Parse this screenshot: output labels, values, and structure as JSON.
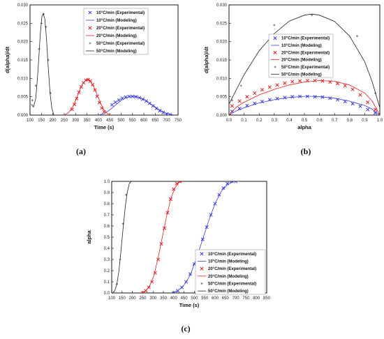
{
  "chart_data": [
    {
      "id": "a",
      "caption": "(a)",
      "type": "line",
      "xlabel": "Time (s)",
      "ylabel": "d(alpha)/dt",
      "xlim": [
        100,
        750
      ],
      "ylim": [
        0,
        0.03
      ],
      "x_ticks": [
        "100",
        "150",
        "200",
        "250",
        "300",
        "350",
        "400",
        "450",
        "500",
        "550",
        "600",
        "650",
        "700",
        "750"
      ],
      "y_ticks": [
        "0.000",
        "0.005",
        "0.010",
        "0.015",
        "0.020",
        "0.025",
        "0.030"
      ],
      "legend_position": "top-right",
      "legend": [
        {
          "series": 0,
          "label": "10°C/min (Experimental)"
        },
        {
          "series": 1,
          "label": "10°C/min (Modeling)"
        },
        {
          "series": 2,
          "label": "20°C/min (Experimental)"
        },
        {
          "series": 3,
          "label": "20°C/min (Modeling)"
        },
        {
          "series": 4,
          "label": "50°C/min (Experimental)"
        },
        {
          "series": 5,
          "label": "50°C/min (Modeling)"
        }
      ],
      "series": [
        {
          "name": "10°C/min (Experimental)",
          "color": "#3b3bd6",
          "style": "marker",
          "x": [
            460,
            475,
            490,
            505,
            520,
            535,
            550,
            565,
            580,
            595,
            610,
            625,
            640,
            655,
            670,
            685,
            700,
            715
          ],
          "y": [
            0.0028,
            0.0035,
            0.0041,
            0.0046,
            0.0049,
            0.0051,
            0.0051,
            0.005,
            0.0047,
            0.0043,
            0.0038,
            0.0032,
            0.0025,
            0.0018,
            0.0012,
            0.0007,
            0.0003,
            0.0001
          ]
        },
        {
          "name": "10°C/min (Modeling)",
          "color": "#3b3bd6",
          "style": "line",
          "x": [
            400,
            425,
            450,
            475,
            500,
            525,
            550,
            575,
            600,
            625,
            650,
            675,
            700,
            725,
            740
          ],
          "y": [
            0.0,
            0.0004,
            0.0014,
            0.0027,
            0.004,
            0.0048,
            0.0051,
            0.0049,
            0.0043,
            0.0033,
            0.0022,
            0.0012,
            0.0005,
            0.0001,
            0.0
          ]
        },
        {
          "name": "20°C/min (Experimental)",
          "color": "#e02020",
          "style": "marker",
          "x": [
            285,
            295,
            305,
            315,
            325,
            335,
            345,
            355,
            365,
            375,
            385,
            395,
            405,
            415,
            425
          ],
          "y": [
            0.0016,
            0.0029,
            0.0045,
            0.0062,
            0.0077,
            0.0088,
            0.0095,
            0.0097,
            0.0093,
            0.0083,
            0.0068,
            0.0051,
            0.0034,
            0.0019,
            0.0009
          ]
        },
        {
          "name": "20°C/min (Modeling)",
          "color": "#e02020",
          "style": "line",
          "x": [
            250,
            270,
            290,
            305,
            320,
            335,
            350,
            365,
            380,
            395,
            410,
            425,
            440,
            455
          ],
          "y": [
            0.0,
            0.0007,
            0.0025,
            0.0047,
            0.0071,
            0.0089,
            0.0096,
            0.0092,
            0.0077,
            0.0055,
            0.0032,
            0.0014,
            0.0004,
            0.0
          ]
        },
        {
          "name": "50°C/min (Experimental)",
          "color": "#555555",
          "style": "marker",
          "x": [
            110,
            125,
            140,
            150,
            160,
            170,
            180,
            190
          ],
          "y": [
            0.004,
            0.008,
            0.018,
            0.025,
            0.0275,
            0.024,
            0.015,
            0.006
          ]
        },
        {
          "name": "50°C/min (Modeling)",
          "color": "#222222",
          "style": "line",
          "x": [
            105,
            115,
            125,
            135,
            145,
            152,
            158,
            165,
            172,
            180,
            188,
            196,
            205
          ],
          "y": [
            0.003,
            0.0022,
            0.0045,
            0.012,
            0.022,
            0.0268,
            0.0276,
            0.0262,
            0.021,
            0.013,
            0.006,
            0.0018,
            0.0
          ]
        }
      ]
    },
    {
      "id": "b",
      "caption": "(b)",
      "type": "line",
      "xlabel": "alpha",
      "ylabel": "d(alpha)/dt",
      "xlim": [
        0,
        1
      ],
      "ylim": [
        0,
        0.03
      ],
      "x_ticks": [
        "0.0",
        "0.1",
        "0.2",
        "0.3",
        "0.4",
        "0.5",
        "0.6",
        "0.7",
        "0.8",
        "0.9",
        "1.0"
      ],
      "y_ticks": [
        "0.000",
        "0.005",
        "0.010",
        "0.015",
        "0.020",
        "0.025",
        "0.030"
      ],
      "legend_position": "center-right",
      "legend": [
        {
          "series": 0,
          "label": "10°C/min (Experimental)"
        },
        {
          "series": 1,
          "label": "10°C/min (Modeling)"
        },
        {
          "series": 2,
          "label": "20°C/min (Experimental)"
        },
        {
          "series": 3,
          "label": "20°C/min (Modeling)"
        },
        {
          "series": 4,
          "label": "50°C/min (Experimental)"
        },
        {
          "series": 5,
          "label": "50°C/min (Modeling)"
        }
      ],
      "series": [
        {
          "name": "10°C/min (Experimental)",
          "color": "#3b3bd6",
          "style": "marker",
          "x": [
            0.02,
            0.07,
            0.12,
            0.17,
            0.22,
            0.27,
            0.32,
            0.37,
            0.42,
            0.47,
            0.52,
            0.57,
            0.62,
            0.67,
            0.72,
            0.77,
            0.82,
            0.87,
            0.92,
            0.97
          ],
          "y": [
            0.001,
            0.0018,
            0.0026,
            0.0032,
            0.0037,
            0.0042,
            0.0045,
            0.0048,
            0.005,
            0.0051,
            0.0051,
            0.005,
            0.0049,
            0.0046,
            0.0042,
            0.0037,
            0.0031,
            0.0024,
            0.0015,
            0.0006
          ]
        },
        {
          "name": "10°C/min (Modeling)",
          "color": "#3b3bd6",
          "style": "line",
          "x": [
            0.0,
            0.05,
            0.1,
            0.2,
            0.3,
            0.4,
            0.5,
            0.55,
            0.6,
            0.7,
            0.8,
            0.9,
            0.95,
            1.0
          ],
          "y": [
            0.0,
            0.0012,
            0.002,
            0.0033,
            0.0042,
            0.0048,
            0.0051,
            0.0051,
            0.005,
            0.0046,
            0.0038,
            0.0026,
            0.0016,
            0.0
          ]
        },
        {
          "name": "20°C/min (Experimental)",
          "color": "#e02020",
          "style": "marker",
          "x": [
            0.02,
            0.07,
            0.12,
            0.17,
            0.22,
            0.27,
            0.32,
            0.37,
            0.42,
            0.47,
            0.52,
            0.57,
            0.62,
            0.67,
            0.72,
            0.77,
            0.82,
            0.87,
            0.92,
            0.97
          ],
          "y": [
            0.0025,
            0.0038,
            0.005,
            0.006,
            0.0069,
            0.0076,
            0.0082,
            0.0087,
            0.0091,
            0.0093,
            0.0094,
            0.0094,
            0.0093,
            0.009,
            0.0086,
            0.008,
            0.007,
            0.0055,
            0.0035,
            0.0015
          ]
        },
        {
          "name": "20°C/min (Modeling)",
          "color": "#e02020",
          "style": "line",
          "x": [
            0.0,
            0.05,
            0.1,
            0.2,
            0.3,
            0.4,
            0.5,
            0.6,
            0.7,
            0.8,
            0.9,
            0.95,
            1.0
          ],
          "y": [
            0.0,
            0.0022,
            0.0035,
            0.0055,
            0.007,
            0.0082,
            0.009,
            0.0094,
            0.0092,
            0.0082,
            0.006,
            0.0038,
            0.0
          ]
        },
        {
          "name": "50°C/min (Experimental)",
          "color": "#555555",
          "style": "marker",
          "x": [
            0.02,
            0.08,
            0.3,
            0.55,
            0.85,
            0.97
          ],
          "y": [
            0.004,
            0.008,
            0.0245,
            0.0272,
            0.0215,
            0.006
          ]
        },
        {
          "name": "50°C/min (Modeling)",
          "color": "#222222",
          "style": "line",
          "x": [
            0.0,
            0.05,
            0.1,
            0.2,
            0.3,
            0.4,
            0.5,
            0.55,
            0.6,
            0.7,
            0.8,
            0.9,
            0.95,
            1.0
          ],
          "y": [
            0.003,
            0.007,
            0.011,
            0.0175,
            0.0222,
            0.0256,
            0.0272,
            0.0275,
            0.0272,
            0.0255,
            0.0215,
            0.0145,
            0.009,
            0.002
          ]
        }
      ]
    },
    {
      "id": "c",
      "caption": "(c)",
      "type": "line",
      "xlabel": "Time (s)",
      "ylabel": "alpha",
      "xlim": [
        100,
        850
      ],
      "ylim": [
        0,
        1
      ],
      "x_ticks": [
        "100",
        "150",
        "200",
        "250",
        "300",
        "350",
        "400",
        "450",
        "500",
        "550",
        "600",
        "650",
        "700",
        "750",
        "800",
        "850"
      ],
      "y_ticks": [
        "0.0",
        "0.1",
        "0.2",
        "0.3",
        "0.4",
        "0.5",
        "0.6",
        "0.7",
        "0.8",
        "0.9",
        "1.0"
      ],
      "legend_position": "bottom-right",
      "legend": [
        {
          "series": 0,
          "label": "10°C/min (Experimental)"
        },
        {
          "series": 1,
          "label": "10°C/min (Modeling)"
        },
        {
          "series": 2,
          "label": "20°C/min (Experimental)"
        },
        {
          "series": 3,
          "label": "20°C/min (Modeling)"
        },
        {
          "series": 4,
          "label": "50°C/min (Experimental)"
        },
        {
          "series": 5,
          "label": "50°C/min (Modeling)"
        }
      ],
      "series": [
        {
          "name": "10°C/min (Experimental)",
          "color": "#3b3bd6",
          "style": "marker",
          "x": [
            400,
            420,
            440,
            460,
            480,
            500,
            520,
            540,
            560,
            580,
            600,
            620,
            640,
            660,
            680,
            700
          ],
          "y": [
            0.0,
            0.02,
            0.05,
            0.1,
            0.17,
            0.26,
            0.37,
            0.48,
            0.59,
            0.7,
            0.8,
            0.88,
            0.94,
            0.98,
            1.0,
            1.0
          ]
        },
        {
          "name": "10°C/min (Modeling)",
          "color": "#3b3bd6",
          "style": "line",
          "x": [
            390,
            420,
            450,
            480,
            510,
            540,
            570,
            600,
            630,
            660,
            690,
            720
          ],
          "y": [
            0.0,
            0.02,
            0.07,
            0.16,
            0.31,
            0.48,
            0.65,
            0.8,
            0.91,
            0.97,
            1.0,
            1.0
          ]
        },
        {
          "name": "20°C/min (Experimental)",
          "color": "#e02020",
          "style": "marker",
          "x": [
            250,
            265,
            280,
            295,
            310,
            325,
            340,
            355,
            370,
            385,
            400,
            415,
            430
          ],
          "y": [
            0.0,
            0.02,
            0.05,
            0.1,
            0.18,
            0.3,
            0.44,
            0.58,
            0.72,
            0.84,
            0.93,
            0.98,
            1.0
          ]
        },
        {
          "name": "20°C/min (Modeling)",
          "color": "#e02020",
          "style": "line",
          "x": [
            245,
            265,
            285,
            305,
            325,
            345,
            365,
            385,
            405,
            425,
            445
          ],
          "y": [
            0.0,
            0.02,
            0.07,
            0.16,
            0.32,
            0.5,
            0.68,
            0.84,
            0.94,
            0.99,
            1.0
          ]
        },
        {
          "name": "50°C/min (Experimental)",
          "color": "#555555",
          "style": "marker",
          "x": [
            110,
            125,
            140,
            155,
            170,
            185
          ],
          "y": [
            0.0,
            0.08,
            0.3,
            0.62,
            0.88,
            1.0
          ]
        },
        {
          "name": "50°C/min (Modeling)",
          "color": "#222222",
          "style": "line",
          "x": [
            105,
            115,
            125,
            135,
            145,
            155,
            165,
            175,
            185,
            195
          ],
          "y": [
            0.0,
            0.02,
            0.08,
            0.2,
            0.38,
            0.58,
            0.76,
            0.9,
            0.98,
            1.0
          ]
        }
      ]
    }
  ]
}
